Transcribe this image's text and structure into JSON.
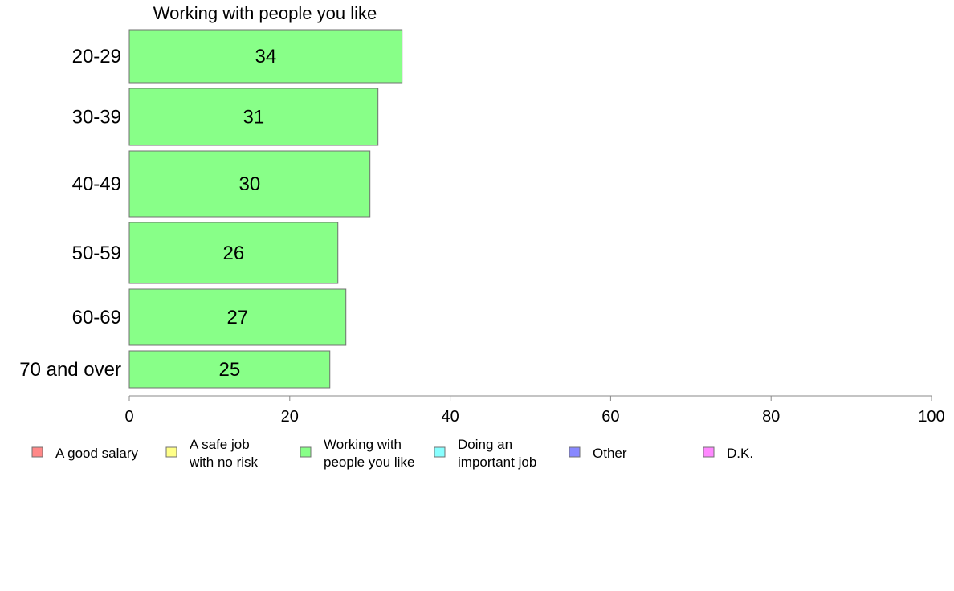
{
  "chart_data": {
    "type": "bar",
    "orientation": "horizontal",
    "title": "Working with people you like",
    "xlabel": "",
    "ylabel": "",
    "categories": [
      "20-29",
      "30-39",
      "40-49",
      "50-59",
      "60-69",
      "70 and over"
    ],
    "series": [
      {
        "name": "Working with people you like",
        "color": "#88ff88",
        "values": [
          34,
          31,
          30,
          26,
          27,
          25
        ]
      }
    ],
    "value_labels": [
      "34",
      "31",
      "30",
      "26",
      "27",
      "25"
    ],
    "xlim": [
      0,
      100
    ],
    "xticks": [
      0,
      20,
      40,
      60,
      80,
      100
    ],
    "grid": false,
    "legend": {
      "placement": "bottom",
      "items": [
        {
          "lines": [
            "A good salary"
          ],
          "color": "#ff8888"
        },
        {
          "lines": [
            "A safe job",
            "with no risk"
          ],
          "color": "#ffff88"
        },
        {
          "lines": [
            "Working with",
            "people you like"
          ],
          "color": "#88ff88"
        },
        {
          "lines": [
            "Doing an",
            "important job"
          ],
          "color": "#88ffff"
        },
        {
          "lines": [
            "Other"
          ],
          "color": "#8888ff"
        },
        {
          "lines": [
            "D.K."
          ],
          "color": "#ff88ff"
        }
      ]
    }
  }
}
